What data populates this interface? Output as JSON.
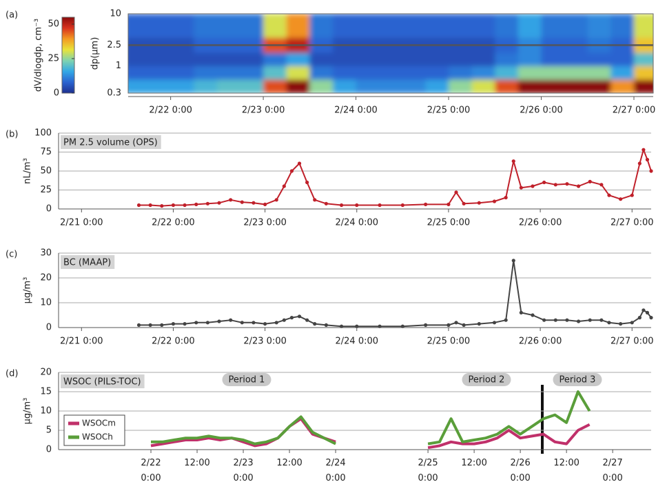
{
  "chart_data": [
    {
      "type": "heatmap",
      "label": "(a)",
      "ylabel": "dp(μm)",
      "colorbar_label": "dV/dlogdp, cm⁻³",
      "zlim": [
        0,
        55
      ],
      "zticks": [
        0,
        25,
        50
      ],
      "colormap": [
        "#1d2f8f",
        "#2a63d0",
        "#33a8e6",
        "#7fd3b0",
        "#e8e33a",
        "#f39a22",
        "#d8321e",
        "#8a0b0b"
      ],
      "log_y": true,
      "ylim": [
        0.3,
        10
      ],
      "yticks": [
        0.3,
        1,
        2.5,
        10
      ],
      "xlim": [
        13,
        149
      ],
      "xticks": [
        {
          "value": 24,
          "label": "2/22 0:00"
        },
        {
          "value": 48,
          "label": "2/23 0:00"
        },
        {
          "value": 72,
          "label": "2/24 0:00"
        },
        {
          "value": 96,
          "label": "2/25 0:00"
        },
        {
          "value": 120,
          "label": "2/26 0:00"
        },
        {
          "value": 144,
          "label": "2/27 0:00"
        }
      ],
      "x_bins": [
        12,
        18,
        24,
        30,
        36,
        42,
        48,
        54,
        60,
        66,
        72,
        78,
        84,
        90,
        96,
        102,
        108,
        114,
        120,
        126,
        132,
        138,
        144,
        150
      ],
      "y_bins": [
        0.3,
        0.55,
        1,
        1.8,
        3.5,
        10
      ],
      "z": [
        [
          15,
          15,
          15,
          18,
          20,
          20,
          45,
          55,
          25,
          15,
          12,
          12,
          12,
          15,
          25,
          30,
          45,
          55,
          55,
          55,
          55,
          40,
          55
        ],
        [
          8,
          8,
          8,
          10,
          10,
          10,
          20,
          30,
          10,
          8,
          8,
          8,
          8,
          8,
          10,
          12,
          18,
          25,
          25,
          25,
          25,
          15,
          35
        ],
        [
          5,
          5,
          5,
          5,
          5,
          5,
          10,
          15,
          5,
          5,
          5,
          5,
          5,
          5,
          5,
          5,
          10,
          12,
          8,
          8,
          8,
          8,
          20
        ],
        [
          5,
          5,
          5,
          8,
          8,
          8,
          45,
          50,
          8,
          5,
          5,
          5,
          5,
          5,
          5,
          5,
          8,
          12,
          8,
          8,
          10,
          8,
          35
        ],
        [
          8,
          8,
          8,
          10,
          10,
          10,
          30,
          40,
          10,
          8,
          8,
          8,
          8,
          8,
          8,
          8,
          10,
          15,
          10,
          10,
          12,
          10,
          30
        ]
      ]
    },
    {
      "type": "line",
      "label": "(b)",
      "title": "PM 2.5 volume (OPS)",
      "ylabel": "nL/m³",
      "ylim": [
        0,
        100
      ],
      "yticks": [
        0,
        25,
        50,
        75,
        100
      ],
      "xlim": [
        -6,
        149
      ],
      "grid": true,
      "markers": true,
      "xticks": [
        {
          "value": 0,
          "label": "2/21 0:00"
        },
        {
          "value": 24,
          "label": "2/22 0:00"
        },
        {
          "value": 48,
          "label": "2/23 0:00"
        },
        {
          "value": 72,
          "label": "2/24 0:00"
        },
        {
          "value": 96,
          "label": "2/25 0:00"
        },
        {
          "value": 120,
          "label": "2/26 0:00"
        },
        {
          "value": 144,
          "label": "2/27 0:00"
        }
      ],
      "x": [
        15,
        18,
        21,
        24,
        27,
        30,
        33,
        36,
        39,
        42,
        45,
        48,
        51,
        53,
        55,
        57,
        59,
        61,
        64,
        68,
        72,
        78,
        84,
        90,
        96,
        98,
        100,
        104,
        108,
        111,
        113,
        115,
        118,
        121,
        124,
        127,
        130,
        133,
        136,
        138,
        141,
        144,
        146,
        147,
        148,
        149
      ],
      "series": [
        {
          "color": "#c0202a",
          "values": [
            5,
            5,
            4,
            5,
            5,
            6,
            7,
            8,
            12,
            9,
            8,
            6,
            12,
            30,
            50,
            60,
            35,
            12,
            7,
            5,
            5,
            5,
            5,
            6,
            6,
            22,
            7,
            8,
            10,
            15,
            63,
            28,
            30,
            35,
            32,
            33,
            30,
            36,
            32,
            18,
            13,
            18,
            60,
            78,
            65,
            50
          ]
        }
      ]
    },
    {
      "type": "line",
      "label": "(c)",
      "title": "BC (MAAP)",
      "ylabel": "µg/m³",
      "ylim": [
        0,
        30
      ],
      "yticks": [
        0,
        10,
        20,
        30
      ],
      "xlim": [
        -6,
        149
      ],
      "grid": true,
      "markers": true,
      "xticks": [
        {
          "value": 0,
          "label": "2/21 0:00"
        },
        {
          "value": 24,
          "label": "2/22 0:00"
        },
        {
          "value": 48,
          "label": "2/23 0:00"
        },
        {
          "value": 72,
          "label": "2/24 0:00"
        },
        {
          "value": 96,
          "label": "2/25 0:00"
        },
        {
          "value": 120,
          "label": "2/26 0:00"
        },
        {
          "value": 144,
          "label": "2/27 0:00"
        }
      ],
      "x": [
        15,
        18,
        21,
        24,
        27,
        30,
        33,
        36,
        39,
        42,
        45,
        48,
        51,
        53,
        55,
        57,
        59,
        61,
        64,
        68,
        72,
        78,
        84,
        90,
        96,
        98,
        100,
        104,
        108,
        111,
        113,
        115,
        118,
        121,
        124,
        127,
        130,
        133,
        136,
        138,
        141,
        144,
        146,
        147,
        148,
        149
      ],
      "series": [
        {
          "color": "#444444",
          "values": [
            1,
            1,
            1,
            1.5,
            1.5,
            2,
            2,
            2.5,
            3,
            2,
            2,
            1.5,
            2,
            3,
            4,
            4.5,
            3,
            1.5,
            1,
            0.5,
            0.5,
            0.5,
            0.5,
            1,
            1,
            2,
            1,
            1.5,
            2,
            3,
            27,
            6,
            5,
            3,
            3,
            3,
            2.5,
            3,
            3,
            2,
            1.5,
            2,
            4,
            7,
            6,
            4
          ]
        }
      ]
    },
    {
      "type": "line",
      "label": "(d)",
      "title": "WSOC (PILS-TOC)",
      "ylabel": "µg/m³",
      "ylim": [
        0,
        20
      ],
      "yticks": [
        0,
        5,
        10,
        15,
        20
      ],
      "xlim": [
        0,
        154
      ],
      "grid": true,
      "markers": false,
      "legend": "lower left",
      "xticks": [
        {
          "value": 24,
          "label": "2/22 0:00"
        },
        {
          "value": 36,
          "label": "12:00"
        },
        {
          "value": 48,
          "label": "2/23 0:00"
        },
        {
          "value": 60,
          "label": "12:00"
        },
        {
          "value": 72,
          "label": "2/24 0:00"
        },
        {
          "value": 96,
          "label": "2/25 0:00"
        },
        {
          "value": 108,
          "label": "12:00"
        },
        {
          "value": 120,
          "label": "2/26 0:00"
        },
        {
          "value": 132,
          "label": "12:00"
        },
        {
          "value": 144,
          "label": "2/27 0:00"
        }
      ],
      "annotations": [
        "Period 1",
        "Period 2",
        "Period 3"
      ],
      "x": [
        24,
        27,
        30,
        33,
        36,
        39,
        42,
        45,
        48,
        51,
        54,
        57,
        60,
        63,
        66,
        69,
        72,
        84,
        96,
        99,
        102,
        105,
        108,
        111,
        114,
        117,
        120,
        123,
        126,
        129,
        132,
        135,
        138
      ],
      "series": [
        {
          "name": "WSOCm",
          "color": "#c0306a",
          "values": [
            1,
            1.5,
            2,
            2.5,
            2.5,
            3,
            2.5,
            3,
            2,
            1,
            1.5,
            3,
            6,
            8,
            4,
            3,
            2,
            null,
            0.5,
            1,
            2,
            1.5,
            1.5,
            2,
            3,
            5,
            3,
            3.5,
            4,
            2,
            1.5,
            5,
            6.5
          ]
        },
        {
          "name": "WSOCh",
          "color": "#5a9e3a",
          "values": [
            2,
            2,
            2.5,
            3,
            3,
            3.5,
            3,
            3,
            2.5,
            1.5,
            2,
            3,
            6,
            8.5,
            4.5,
            3,
            1.5,
            null,
            1.5,
            2,
            8,
            2,
            2.5,
            3,
            4,
            6,
            4,
            6,
            8,
            9,
            7,
            15,
            10
          ]
        }
      ]
    }
  ]
}
